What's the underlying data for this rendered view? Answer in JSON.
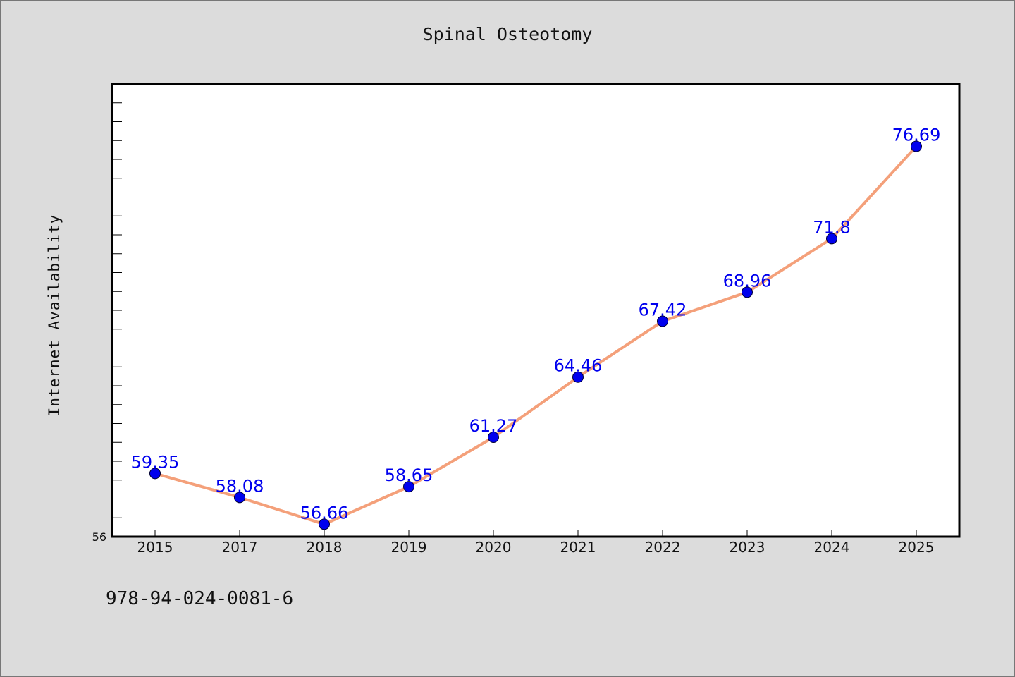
{
  "footer_text": "978-94-024-0081-6",
  "chart_data": {
    "type": "line",
    "title": "Spinal Osteotomy",
    "xlabel": "",
    "ylabel": "Internet Availability",
    "categories": [
      "2015",
      "2017",
      "2018",
      "2019",
      "2020",
      "2021",
      "2022",
      "2023",
      "2024",
      "2025"
    ],
    "series": [
      {
        "values": [
          59.35,
          58.08,
          56.66,
          58.65,
          61.27,
          64.46,
          67.42,
          68.96,
          71.8,
          76.69
        ],
        "data_labels": [
          "59.35",
          "58.08",
          "56.66",
          "58.65",
          "61.27",
          "64.46",
          "67.42",
          "68.96",
          "71.8",
          "76.69"
        ],
        "line_color": "#f4a07a",
        "marker_color": "#0000ee"
      }
    ],
    "ylim": [
      56,
      80
    ],
    "y_tick_labels": [
      "56"
    ],
    "y_minor_step": 1,
    "grid": false,
    "legend": "none",
    "plot_background": "#ffffff",
    "figure_background": "#dcdcdc"
  }
}
